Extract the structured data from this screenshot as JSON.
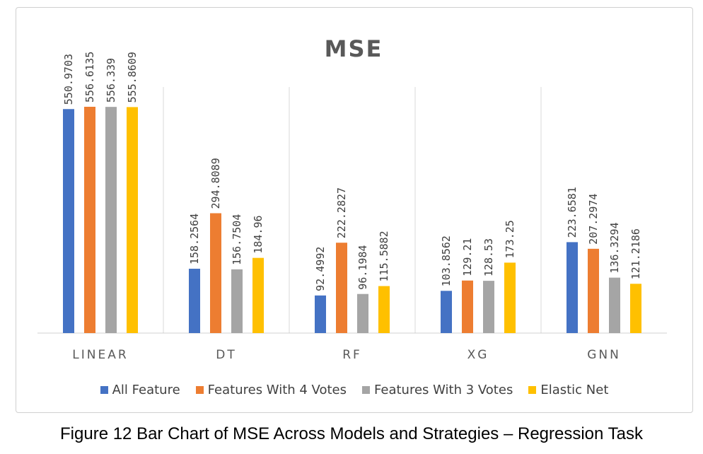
{
  "caption": "Figure 12 Bar Chart of MSE Across Models and Strategies – Regression Task",
  "chart_data": {
    "type": "bar",
    "title": "MSE",
    "xlabel": "",
    "ylabel": "",
    "categories": [
      "LINEAR",
      "DT",
      "RF",
      "XG",
      "GNN"
    ],
    "series": [
      {
        "name": "All Feature",
        "color": "#4472C4",
        "values": [
          550.9703,
          158.2564,
          92.4992,
          103.8562,
          223.6581
        ],
        "labels": [
          "550.9703",
          "158.2564",
          "92.4992",
          "103.8562",
          "223.6581"
        ]
      },
      {
        "name": "Features With 4 Votes",
        "color": "#ED7D31",
        "values": [
          556.6135,
          294.8089,
          222.2827,
          129.21,
          207.2974
        ],
        "labels": [
          "556.6135",
          "294.8089",
          "222.2827",
          "129.21",
          "207.2974"
        ]
      },
      {
        "name": "Features With 3 Votes",
        "color": "#A5A5A5",
        "values": [
          556.339,
          156.7504,
          96.1984,
          128.53,
          136.3294
        ],
        "labels": [
          "556.339",
          "156.7504",
          "96.1984",
          "128.53",
          "136.3294"
        ]
      },
      {
        "name": "Elastic Net",
        "color": "#FFC000",
        "values": [
          555.8609,
          184.96,
          115.5882,
          173.25,
          121.2186
        ],
        "labels": [
          "555.8609",
          "184.96",
          "115.5882",
          "173.25",
          "121.2186"
        ]
      }
    ],
    "ylim": [
      0,
      600
    ],
    "grid": false,
    "legend_position": "bottom"
  }
}
